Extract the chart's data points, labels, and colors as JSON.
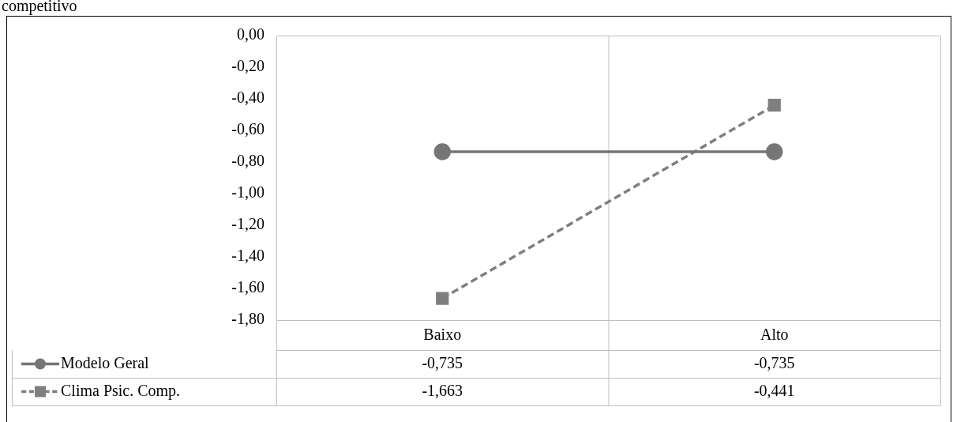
{
  "chart_data": {
    "type": "line",
    "title": "competitivo",
    "categories": [
      "Baixo",
      "Alto"
    ],
    "series": [
      {
        "name": "Modelo Geral",
        "color": "#767676",
        "values": [
          -0.735,
          -0.735
        ],
        "value_labels": [
          "-0,735",
          "-0,735"
        ],
        "marker": "circle",
        "line_style": "solid"
      },
      {
        "name": "Clima Psic. Comp.",
        "color": "#7f7f7f",
        "values": [
          -1.663,
          -0.441
        ],
        "value_labels": [
          "-1,663",
          "-0,441"
        ],
        "marker": "square",
        "line_style": "dashed"
      }
    ],
    "ylim": [
      -1.8,
      0
    ],
    "yticks": [
      {
        "value": 0,
        "label": "0,00"
      },
      {
        "value": -0.2,
        "label": "-0,20"
      },
      {
        "value": -0.4,
        "label": "-0,40"
      },
      {
        "value": -0.6,
        "label": "-0,60"
      },
      {
        "value": -0.8,
        "label": "-0,80"
      },
      {
        "value": -1,
        "label": "-1,00"
      },
      {
        "value": -1.2,
        "label": "-1,20"
      },
      {
        "value": -1.4,
        "label": "-1,40"
      },
      {
        "value": -1.6,
        "label": "-1,60"
      },
      {
        "value": -1.8,
        "label": "-1,80"
      }
    ],
    "grid": "x",
    "legend": "bottom"
  }
}
